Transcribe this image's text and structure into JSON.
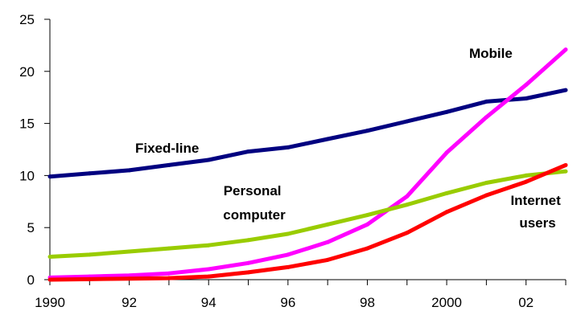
{
  "chart_data": {
    "type": "line",
    "title": "",
    "xlabel": "",
    "ylabel": "",
    "x": [
      1990,
      1991,
      1992,
      1993,
      1994,
      1995,
      1996,
      1997,
      1998,
      1999,
      2000,
      2001,
      2002,
      2003
    ],
    "x_tick_values": [
      1990,
      1992,
      1994,
      1996,
      1998,
      2000,
      2002
    ],
    "x_tick_labels": [
      "1990",
      "92",
      "94",
      "96",
      "98",
      "2000",
      "02"
    ],
    "xlim": [
      1990,
      2003
    ],
    "ylim": [
      0,
      25
    ],
    "y_ticks": [
      0,
      5,
      10,
      15,
      20,
      25
    ],
    "y_tick_labels": [
      "0",
      "5",
      "10",
      "15",
      "20",
      "25"
    ],
    "grid": false,
    "legend": "none",
    "series": [
      {
        "name": "Fixed-line",
        "label_lines": [
          "Fixed-line"
        ],
        "color": "#000080",
        "values": [
          9.9,
          10.2,
          10.5,
          11.0,
          11.5,
          12.3,
          12.7,
          13.5,
          14.3,
          15.2,
          16.1,
          17.1,
          17.4,
          18.2
        ]
      },
      {
        "name": "Mobile",
        "label_lines": [
          "Mobile"
        ],
        "color": "#FF00FF",
        "values": [
          0.2,
          0.3,
          0.4,
          0.6,
          1.0,
          1.6,
          2.4,
          3.6,
          5.3,
          8.0,
          12.2,
          15.6,
          18.7,
          22.1
        ]
      },
      {
        "name": "Personal computer",
        "label_lines": [
          "Personal",
          "computer"
        ],
        "color": "#99CC00",
        "values": [
          2.2,
          2.4,
          2.7,
          3.0,
          3.3,
          3.8,
          4.4,
          5.3,
          6.2,
          7.2,
          8.3,
          9.3,
          10.0,
          10.4
        ]
      },
      {
        "name": "Internet users",
        "label_lines": [
          "Internet",
          "users"
        ],
        "color": "#FF0000",
        "values": [
          0.0,
          0.05,
          0.1,
          0.15,
          0.3,
          0.7,
          1.2,
          1.9,
          3.0,
          4.5,
          6.5,
          8.1,
          9.4,
          11.0
        ]
      }
    ]
  }
}
